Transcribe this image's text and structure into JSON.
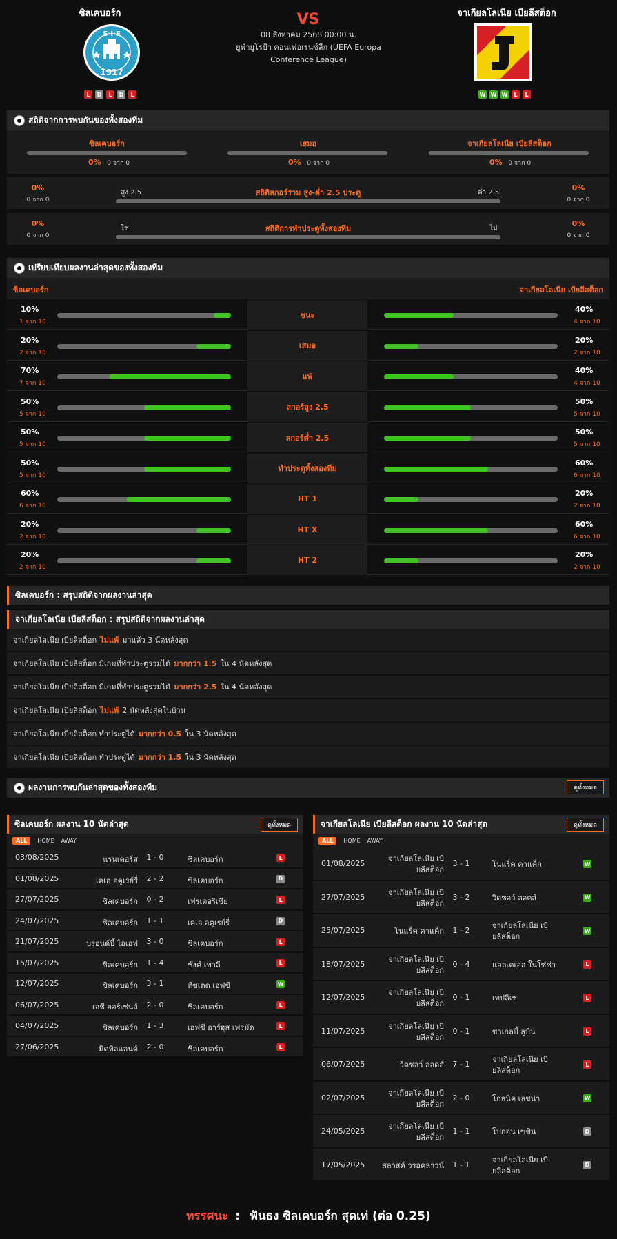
{
  "header": {
    "home_name": "ซิลเคบอร์ก",
    "away_name": "จาเกียลโลเนีย เบียลีสต็อก",
    "vs": "VS",
    "date": "08 สิงหาคม 2568 00:00 น.",
    "league_line1": "ยูฟ่ายูโรป้า คอนเฟอเรนซ์ลีก (UEFA Europa",
    "league_line2": "Conference League)",
    "home_logo_text_top": "S·I·F",
    "home_logo_text_year": "1917",
    "home_form": [
      "L",
      "D",
      "L",
      "D",
      "L"
    ],
    "away_form": [
      "W",
      "W",
      "W",
      "L",
      "L"
    ]
  },
  "h2h": {
    "title": "สถิติจากการพบกันของทั้งสองทีม",
    "cols": [
      {
        "label": "ซิลเคบอร์ก",
        "pct": "0%",
        "sub": "0 จาก 0"
      },
      {
        "label": "เสมอ",
        "pct": "0%",
        "sub": "0 จาก 0"
      },
      {
        "label": "จาเกียลโลเนีย เบียลีสต็อก",
        "pct": "0%",
        "sub": "0 จาก 0"
      }
    ],
    "ou": {
      "title": "สถิติสกอร์รวม สูง-ต่ำ 2.5 ประตู",
      "left_label": "สูง 2.5",
      "right_label": "ต่ำ 2.5",
      "left_pct": "0%",
      "left_sub": "0 จาก 0",
      "right_pct": "0%",
      "right_sub": "0 จาก 0"
    },
    "btts": {
      "title": "สถิติการทำประตูทั้งสองทีม",
      "left_label": "ใช่",
      "right_label": "ไม่",
      "left_pct": "0%",
      "left_sub": "0 จาก 0",
      "right_pct": "0%",
      "right_sub": "0 จาก 0"
    }
  },
  "compare": {
    "title": "เปรียบเทียบผลงานล่าสุดของทั้งสองทีม",
    "home_label": "ซิลเคบอร์ก",
    "away_label": "จาเกียลโลเนีย เบียลีสต็อก",
    "rows": [
      {
        "label": "ชนะ",
        "home_pct": "10%",
        "home_sub": "1 จาก 10",
        "home_val": 0.1,
        "away_pct": "40%",
        "away_sub": "4 จาก 10",
        "away_val": 0.4
      },
      {
        "label": "เสมอ",
        "home_pct": "20%",
        "home_sub": "2 จาก 10",
        "home_val": 0.2,
        "away_pct": "20%",
        "away_sub": "2 จาก 10",
        "away_val": 0.2
      },
      {
        "label": "แพ้",
        "home_pct": "70%",
        "home_sub": "7 จาก 10",
        "home_val": 0.7,
        "away_pct": "40%",
        "away_sub": "4 จาก 10",
        "away_val": 0.4
      },
      {
        "label": "สกอร์สูง 2.5",
        "home_pct": "50%",
        "home_sub": "5 จาก 10",
        "home_val": 0.5,
        "away_pct": "50%",
        "away_sub": "5 จาก 10",
        "away_val": 0.5
      },
      {
        "label": "สกอร์ต่ำ 2.5",
        "home_pct": "50%",
        "home_sub": "5 จาก 10",
        "home_val": 0.5,
        "away_pct": "50%",
        "away_sub": "5 จาก 10",
        "away_val": 0.5
      },
      {
        "label": "ทำประตูทั้งสองทีม",
        "home_pct": "50%",
        "home_sub": "5 จาก 10",
        "home_val": 0.5,
        "away_pct": "60%",
        "away_sub": "6 จาก 10",
        "away_val": 0.6
      },
      {
        "label": "HT 1",
        "home_pct": "60%",
        "home_sub": "6 จาก 10",
        "home_val": 0.6,
        "away_pct": "20%",
        "away_sub": "2 จาก 10",
        "away_val": 0.2
      },
      {
        "label": "HT X",
        "home_pct": "20%",
        "home_sub": "2 จาก 10",
        "home_val": 0.2,
        "away_pct": "60%",
        "away_sub": "6 จาก 10",
        "away_val": 0.6
      },
      {
        "label": "HT 2",
        "home_pct": "20%",
        "home_sub": "2 จาก 10",
        "home_val": 0.2,
        "away_pct": "20%",
        "away_sub": "2 จาก 10",
        "away_val": 0.2
      }
    ]
  },
  "summary": {
    "home_title": "ซิลเคบอร์ก : สรุปสถิติจากผลงานล่าสุด",
    "away_title": "จาเกียลโลเนีย เบียลีสต็อก : สรุปสถิติจากผลงานล่าสุด",
    "rows": [
      {
        "pre": "จาเกียลโลเนีย เบียลีสต็อก",
        "hl": "ไม่แพ้",
        "post": "มาแล้ว 3 นัดหลังสุด"
      },
      {
        "pre": "จาเกียลโลเนีย เบียลีสต็อก มีเกมที่ทำประตูรวมได้",
        "hl": "มากกว่า 1.5",
        "post": "ใน 4 นัดหลังสุด"
      },
      {
        "pre": "จาเกียลโลเนีย เบียลีสต็อก มีเกมที่ทำประตูรวมได้",
        "hl": "มากกว่า 2.5",
        "post": "ใน 4 นัดหลังสุด"
      },
      {
        "pre": "จาเกียลโลเนีย เบียลีสต็อก",
        "hl": "ไม่แพ้",
        "post": "2 นัดหลังสุดในบ้าน"
      },
      {
        "pre": "จาเกียลโลเนีย เบียลีสต็อก ทำประตูได้",
        "hl": "มากกว่า 0.5",
        "post": "ใน 3 นัดหลังสุด"
      },
      {
        "pre": "จาเกียลโลเนีย เบียลีสต็อก ทำประตูได้",
        "hl": "มากกว่า 1.5",
        "post": "ใน 3 นัดหลังสุด"
      }
    ]
  },
  "recent": {
    "title": "ผลงานการพบกันล่าสุดของทั้งสองทีม",
    "see_all": "ดูทั้งหมด",
    "tabs": [
      "ALL",
      "HOME",
      "AWAY"
    ],
    "home_title": "ซิลเคบอร์ก ผลงาน 10 นัดล่าสุด",
    "away_title": "จาเกียลโลเนีย เบียลีสต็อก ผลงาน 10 นัดล่าสุด",
    "home_matches": [
      {
        "date": "03/08/2025",
        "home": "แรนเดอร์ส",
        "score": "1 - 0",
        "away": "ซิลเคบอร์ก",
        "res": "L"
      },
      {
        "date": "01/08/2025",
        "home": "เคเอ อคูเรย์รี่",
        "score": "2 - 2",
        "away": "ซิลเคบอร์ก",
        "res": "D"
      },
      {
        "date": "27/07/2025",
        "home": "ซิลเคบอร์ก",
        "score": "0 - 2",
        "away": "เฟรเดอริเซีย",
        "res": "L"
      },
      {
        "date": "24/07/2025",
        "home": "ซิลเคบอร์ก",
        "score": "1 - 1",
        "away": "เคเอ อคูเรย์รี่",
        "res": "D"
      },
      {
        "date": "21/07/2025",
        "home": "บรอนด์บี้ ไอเอฟ",
        "score": "3 - 0",
        "away": "ซิลเคบอร์ก",
        "res": "L"
      },
      {
        "date": "15/07/2025",
        "home": "ซิลเคบอร์ก",
        "score": "1 - 4",
        "away": "ซังค์ เพาลี",
        "res": "L"
      },
      {
        "date": "12/07/2025",
        "home": "ซิลเคบอร์ก",
        "score": "3 - 1",
        "away": "ทีซเตด เอฟซี",
        "res": "W"
      },
      {
        "date": "06/07/2025",
        "home": "เอชี ฮอร์เซ่นส์",
        "score": "2 - 0",
        "away": "ซิลเคบอร์ก",
        "res": "L"
      },
      {
        "date": "04/07/2025",
        "home": "ซิลเคบอร์ก",
        "score": "1 - 3",
        "away": "เอฟซี อาร์ฮุส เฟรมัด",
        "res": "L"
      },
      {
        "date": "27/06/2025",
        "home": "มิดทิลแลนด์",
        "score": "2 - 0",
        "away": "ซิลเคบอร์ก",
        "res": "L"
      }
    ],
    "away_matches": [
      {
        "date": "01/08/2025",
        "home1": "จาเกียลโลเนีย เบี",
        "home2": "ยลีสต็อก",
        "score": "3 - 1",
        "away1": "โนแร็ค คาแค็ก",
        "away2": "",
        "res": "W"
      },
      {
        "date": "27/07/2025",
        "home1": "จาเกียลโลเนีย เบี",
        "home2": "ยลีสต็อก",
        "score": "3 - 2",
        "away1": "วิดซอว์ ลอดส์",
        "away2": "",
        "res": "W"
      },
      {
        "date": "25/07/2025",
        "home1": "โนแร็ค คาแค็ก",
        "home2": "",
        "score": "1 - 2",
        "away1": "จาเกียลโลเนีย เบี",
        "away2": "ยลีสต็อก",
        "res": "W"
      },
      {
        "date": "18/07/2025",
        "home1": "จาเกียลโลเนีย เบี",
        "home2": "ยลีสต็อก",
        "score": "0 - 4",
        "away1": "แอลเคเอส ในโซ่ช่า",
        "away2": "",
        "res": "L"
      },
      {
        "date": "12/07/2025",
        "home1": "จาเกียลโลเนีย เบี",
        "home2": "ยลีสต็อก",
        "score": "0 - 1",
        "away1": "เทปลิเช่",
        "away2": "",
        "res": "L"
      },
      {
        "date": "11/07/2025",
        "home1": "จาเกียลโลเนีย เบี",
        "home2": "ยลีสต็อก",
        "score": "0 - 1",
        "away1": "ซาเกลบี้ ลูบิน",
        "away2": "",
        "res": "L"
      },
      {
        "date": "06/07/2025",
        "home1": "วิดซอว์ ลอดส์",
        "home2": "",
        "score": "7 - 1",
        "away1": "จาเกียลโลเนีย เบี",
        "away2": "ยลีสต็อก",
        "res": "L"
      },
      {
        "date": "02/07/2025",
        "home1": "จาเกียลโลเนีย เบี",
        "home2": "ยลีสต็อก",
        "score": "2 - 0",
        "away1": "โกลนิค เลชน่า",
        "away2": "",
        "res": "W"
      },
      {
        "date": "24/05/2025",
        "home1": "จาเกียลโลเนีย เบี",
        "home2": "ยลีสต็อก",
        "score": "1 - 1",
        "away1": "โปกอน เซชิน",
        "away2": "",
        "res": "D"
      },
      {
        "date": "17/05/2025",
        "home1": "สลาสค์ วรอคลาวน์",
        "home2": "",
        "score": "1 - 1",
        "away1": "จาเกียลโลเนีย เบี",
        "away2": "ยลีสต็อก",
        "res": "D"
      }
    ]
  },
  "verdict": {
    "label": "ทรรศนะ",
    "sep": ":",
    "text": "ฟันธง ซิลเคบอร์ก สุดเท่ (ต่อ 0.25)"
  },
  "colors": {
    "accent": "#ff6a1f",
    "win": "#37b015",
    "draw": "#888888",
    "loss": "#d61f1f",
    "bar_fill": "#3fc421"
  }
}
